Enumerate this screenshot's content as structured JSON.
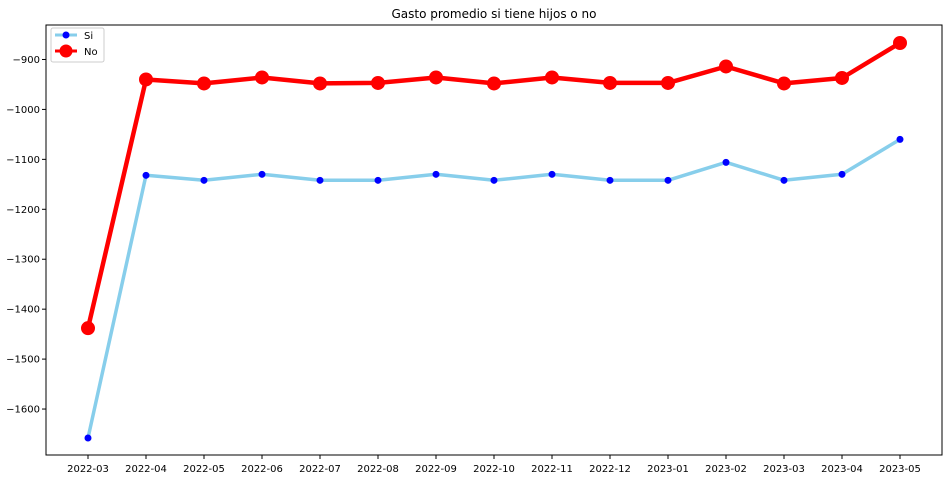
{
  "chart_data": {
    "type": "line",
    "title": "Gasto promedio si tiene hijos o no",
    "xlabel": "",
    "ylabel": "",
    "categories": [
      "2022-03",
      "2022-04",
      "2022-05",
      "2022-06",
      "2022-07",
      "2022-08",
      "2022-09",
      "2022-10",
      "2022-11",
      "2022-12",
      "2023-01",
      "2023-02",
      "2023-03",
      "2023-04",
      "2023-05"
    ],
    "series": [
      {
        "name": "Si",
        "line_color": "#87CEEB",
        "marker_color": "#0000FF",
        "values": [
          -1658,
          -1132,
          -1142,
          -1130,
          -1142,
          -1142,
          -1130,
          -1142,
          -1130,
          -1142,
          -1142,
          -1106,
          -1142,
          -1130,
          -1060
        ]
      },
      {
        "name": "No",
        "line_color": "#FF0000",
        "marker_color": "#FF0000",
        "values": [
          -1438,
          -940,
          -948,
          -936,
          -948,
          -947,
          -936,
          -948,
          -936,
          -947,
          -947,
          -914,
          -948,
          -937,
          -867
        ]
      }
    ],
    "y_ticks": [
      -900,
      -1000,
      -1100,
      -1200,
      -1300,
      -1400,
      -1500,
      -1600
    ],
    "y_tick_labels": [
      "−900",
      "−1000",
      "−1100",
      "−1200",
      "−1300",
      "−1400",
      "−1500",
      "−1600"
    ],
    "ylim": [
      -1700,
      -840
    ],
    "grid": false,
    "legend_position": "top-left"
  }
}
